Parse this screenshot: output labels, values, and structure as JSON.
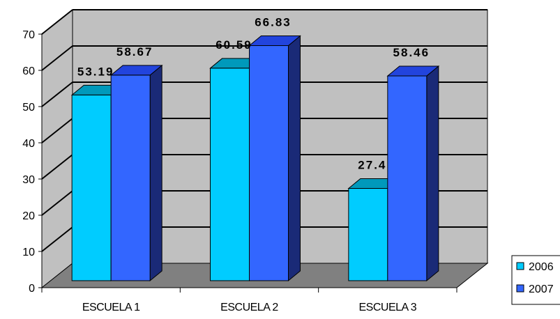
{
  "colors": {
    "wall": "#c0c0c0",
    "floor": "#808080",
    "grid": "#000000",
    "series_2006": "#00ccff",
    "series_2007": "#3366ff"
  },
  "chart_data": {
    "type": "bar",
    "title": "",
    "xlabel": "",
    "ylabel": "",
    "ylim": [
      0,
      70
    ],
    "yticks": [
      "0",
      "10",
      "20",
      "30",
      "40",
      "50",
      "60",
      "70"
    ],
    "categories": [
      "ESCUELA 1",
      "ESCUELA 2",
      "ESCUELA 3"
    ],
    "series": [
      {
        "name": "2006",
        "values": [
          53.19,
          60.59,
          27.4
        ],
        "labels": [
          "53.19",
          "60.59",
          "27.4"
        ]
      },
      {
        "name": "2007",
        "values": [
          58.67,
          66.83,
          58.46
        ],
        "labels": [
          "58.67",
          "66.83",
          "58.46"
        ]
      }
    ],
    "grid": true,
    "legend": "right",
    "style": "3d-clustered-column"
  }
}
